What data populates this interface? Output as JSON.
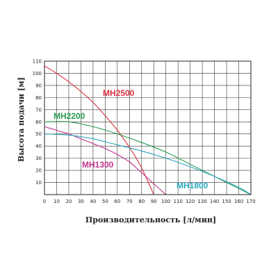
{
  "chart_data": {
    "type": "line",
    "xlabel": "Производительность [л/мин]",
    "ylabel": "Высота подачи [м]",
    "xlim": [
      0,
      170
    ],
    "ylim": [
      0,
      110
    ],
    "xticks": [
      "0",
      "10",
      "20",
      "30",
      "40",
      "50",
      "60",
      "70",
      "80",
      "90",
      "100",
      "110",
      "120",
      "130",
      "140",
      "150",
      "160",
      "170"
    ],
    "yticks": [
      "10",
      "20",
      "30",
      "40",
      "50",
      "60",
      "70",
      "80",
      "90",
      "100",
      "110"
    ],
    "grid": true,
    "series": [
      {
        "name": "MH2500",
        "color": "#d9303e",
        "x": [
          0,
          10,
          20,
          30,
          40,
          50,
          60,
          70,
          80,
          90
        ],
        "y": [
          106,
          100,
          93,
          85,
          76,
          65,
          53,
          39,
          22,
          0
        ]
      },
      {
        "name": "MH2200",
        "color": "#2a9a52",
        "x": [
          0,
          20,
          40,
          60,
          80,
          100,
          120,
          140,
          160,
          170
        ],
        "y": [
          60,
          60,
          56,
          50,
          43,
          35,
          25,
          15,
          5,
          0
        ]
      },
      {
        "name": "MH1300",
        "color": "#c2338f",
        "x": [
          0,
          10,
          20,
          30,
          40,
          50,
          60,
          70,
          80,
          90,
          100
        ],
        "y": [
          56,
          53,
          50,
          46,
          42,
          38,
          33,
          27,
          18,
          9,
          0
        ]
      },
      {
        "name": "MH1800",
        "color": "#2aa6be",
        "x": [
          0,
          20,
          40,
          60,
          80,
          100,
          120,
          140,
          160,
          170
        ],
        "y": [
          50,
          49,
          46,
          41,
          36,
          30,
          23,
          15,
          6,
          0
        ]
      }
    ]
  }
}
